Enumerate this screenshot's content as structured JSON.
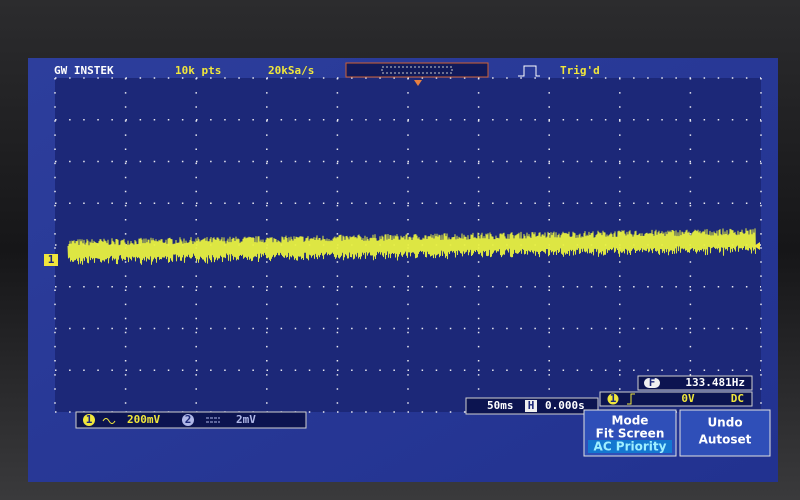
{
  "header": {
    "brand": "GW INSTEK",
    "record_length": "10k pts",
    "sample_rate": "20kSa/s",
    "trigger_status": "Trig'd"
  },
  "ground_marker": "1",
  "frequency": {
    "icon": "F",
    "value": "133.481Hz"
  },
  "trigger": {
    "source": "1",
    "level": "0V",
    "coupling": "DC"
  },
  "channels": [
    {
      "number": "1",
      "scale": "200mV"
    },
    {
      "number": "2",
      "scale": "2mV"
    }
  ],
  "timebase": {
    "scale": "50ms",
    "icon": "H",
    "position": "0.000s"
  },
  "softkeys": [
    {
      "lines": [
        "Mode",
        "Fit Screen",
        "AC Priority"
      ]
    },
    {
      "lines": [
        "Undo",
        "Autoset"
      ]
    }
  ]
}
